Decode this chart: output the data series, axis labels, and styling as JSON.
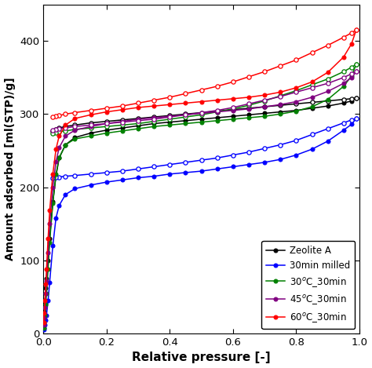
{
  "title": "",
  "xlabel": "Relative pressure [-]",
  "ylabel": "Amount adsorbed [ml(STP)/g]",
  "xlim": [
    0,
    1.0
  ],
  "ylim": [
    0,
    450
  ],
  "yticks": [
    0,
    100,
    200,
    300,
    400
  ],
  "xticks": [
    0.0,
    0.2,
    0.4,
    0.6,
    0.8,
    1.0
  ],
  "series": [
    {
      "label": "Zeolite A",
      "color": "#000000",
      "adsorption_x": [
        0.001,
        0.003,
        0.005,
        0.008,
        0.01,
        0.015,
        0.02,
        0.03,
        0.04,
        0.05,
        0.07,
        0.1,
        0.15,
        0.2,
        0.25,
        0.3,
        0.35,
        0.4,
        0.45,
        0.5,
        0.55,
        0.6,
        0.65,
        0.7,
        0.75,
        0.8,
        0.85,
        0.9,
        0.95,
        0.975,
        0.99
      ],
      "adsorption_y": [
        20,
        30,
        45,
        62,
        75,
        100,
        130,
        180,
        215,
        240,
        258,
        268,
        274,
        278,
        281,
        284,
        287,
        289,
        291,
        293,
        295,
        297,
        299,
        301,
        303,
        305,
        308,
        311,
        315,
        318,
        322
      ],
      "desorption_x": [
        0.99,
        0.975,
        0.95,
        0.9,
        0.85,
        0.8,
        0.75,
        0.7,
        0.65,
        0.6,
        0.55,
        0.5,
        0.45,
        0.4,
        0.35,
        0.3,
        0.25,
        0.2,
        0.15,
        0.1,
        0.07,
        0.05,
        0.04,
        0.03
      ],
      "desorption_y": [
        322,
        321,
        320,
        318,
        316,
        314,
        312,
        310,
        308,
        306,
        304,
        302,
        300,
        298,
        296,
        294,
        292,
        290,
        288,
        285,
        283,
        281,
        279,
        277
      ]
    },
    {
      "label": "30min milled",
      "color": "#0000ff",
      "adsorption_x": [
        0.001,
        0.003,
        0.005,
        0.008,
        0.01,
        0.015,
        0.02,
        0.03,
        0.04,
        0.05,
        0.07,
        0.1,
        0.15,
        0.2,
        0.25,
        0.3,
        0.35,
        0.4,
        0.45,
        0.5,
        0.55,
        0.6,
        0.65,
        0.7,
        0.75,
        0.8,
        0.85,
        0.9,
        0.95,
        0.975,
        0.99
      ],
      "adsorption_y": [
        5,
        8,
        12,
        18,
        25,
        45,
        70,
        120,
        158,
        175,
        190,
        198,
        203,
        207,
        210,
        213,
        215,
        218,
        220,
        222,
        225,
        228,
        231,
        234,
        238,
        244,
        252,
        263,
        278,
        286,
        294
      ],
      "desorption_x": [
        0.99,
        0.975,
        0.95,
        0.9,
        0.85,
        0.8,
        0.75,
        0.7,
        0.65,
        0.6,
        0.55,
        0.5,
        0.45,
        0.4,
        0.35,
        0.3,
        0.25,
        0.2,
        0.15,
        0.1,
        0.07,
        0.05,
        0.04,
        0.03
      ],
      "desorption_y": [
        294,
        292,
        288,
        280,
        272,
        264,
        258,
        253,
        248,
        244,
        240,
        237,
        234,
        231,
        228,
        225,
        222,
        220,
        218,
        216,
        215,
        214,
        213,
        212
      ]
    },
    {
      "label": "30$^o$C_30min",
      "color": "#008000",
      "adsorption_x": [
        0.001,
        0.003,
        0.005,
        0.008,
        0.01,
        0.015,
        0.02,
        0.03,
        0.04,
        0.05,
        0.07,
        0.1,
        0.15,
        0.2,
        0.25,
        0.3,
        0.35,
        0.4,
        0.45,
        0.5,
        0.55,
        0.6,
        0.65,
        0.7,
        0.75,
        0.8,
        0.85,
        0.9,
        0.95,
        0.975,
        0.99
      ],
      "adsorption_y": [
        8,
        15,
        25,
        40,
        55,
        88,
        125,
        178,
        218,
        240,
        258,
        266,
        270,
        274,
        277,
        280,
        283,
        285,
        287,
        289,
        291,
        293,
        295,
        297,
        300,
        304,
        310,
        320,
        338,
        352,
        368
      ],
      "desorption_x": [
        0.99,
        0.975,
        0.95,
        0.9,
        0.85,
        0.8,
        0.75,
        0.7,
        0.65,
        0.6,
        0.55,
        0.5,
        0.45,
        0.4,
        0.35,
        0.3,
        0.25,
        0.2,
        0.15,
        0.1,
        0.07,
        0.05,
        0.04,
        0.03
      ],
      "desorption_y": [
        368,
        364,
        358,
        348,
        340,
        332,
        325,
        318,
        312,
        307,
        303,
        299,
        296,
        293,
        290,
        287,
        285,
        283,
        281,
        279,
        277,
        276,
        275,
        274
      ]
    },
    {
      "label": "45$^o$C_30min",
      "color": "#800080",
      "adsorption_x": [
        0.001,
        0.003,
        0.005,
        0.008,
        0.01,
        0.015,
        0.02,
        0.03,
        0.04,
        0.05,
        0.07,
        0.1,
        0.15,
        0.2,
        0.25,
        0.3,
        0.35,
        0.4,
        0.45,
        0.5,
        0.55,
        0.6,
        0.65,
        0.7,
        0.75,
        0.8,
        0.85,
        0.9,
        0.95,
        0.975,
        0.99
      ],
      "adsorption_y": [
        12,
        22,
        35,
        55,
        72,
        110,
        150,
        200,
        235,
        254,
        270,
        278,
        283,
        287,
        290,
        293,
        295,
        297,
        299,
        301,
        303,
        305,
        307,
        310,
        313,
        317,
        323,
        331,
        342,
        350,
        358
      ],
      "desorption_x": [
        0.99,
        0.975,
        0.95,
        0.9,
        0.85,
        0.8,
        0.75,
        0.7,
        0.65,
        0.6,
        0.55,
        0.5,
        0.45,
        0.4,
        0.35,
        0.3,
        0.25,
        0.2,
        0.15,
        0.1,
        0.07,
        0.05,
        0.04,
        0.03
      ],
      "desorption_y": [
        358,
        355,
        350,
        342,
        336,
        330,
        324,
        319,
        314,
        309,
        305,
        302,
        299,
        296,
        293,
        291,
        289,
        287,
        285,
        283,
        281,
        280,
        279,
        278
      ]
    },
    {
      "label": "60$^o$C_30min",
      "color": "#ff0000",
      "adsorption_x": [
        0.001,
        0.003,
        0.005,
        0.008,
        0.01,
        0.015,
        0.02,
        0.03,
        0.04,
        0.05,
        0.07,
        0.1,
        0.15,
        0.2,
        0.25,
        0.3,
        0.35,
        0.4,
        0.45,
        0.5,
        0.55,
        0.6,
        0.65,
        0.7,
        0.75,
        0.8,
        0.85,
        0.9,
        0.95,
        0.975,
        0.99
      ],
      "adsorption_y": [
        15,
        28,
        45,
        68,
        88,
        130,
        168,
        218,
        252,
        270,
        285,
        294,
        299,
        303,
        306,
        309,
        311,
        313,
        315,
        317,
        319,
        321,
        323,
        326,
        330,
        336,
        344,
        357,
        378,
        396,
        415
      ],
      "desorption_x": [
        0.99,
        0.975,
        0.95,
        0.9,
        0.85,
        0.8,
        0.75,
        0.7,
        0.65,
        0.6,
        0.55,
        0.5,
        0.45,
        0.4,
        0.35,
        0.3,
        0.25,
        0.2,
        0.15,
        0.1,
        0.07,
        0.05,
        0.04,
        0.03
      ],
      "desorption_y": [
        415,
        411,
        405,
        394,
        384,
        374,
        366,
        358,
        351,
        344,
        338,
        333,
        328,
        323,
        319,
        315,
        311,
        308,
        305,
        302,
        300,
        298,
        297,
        296
      ]
    }
  ],
  "legend_loc": "lower right",
  "background_color": "#ffffff",
  "figsize": [
    4.74,
    4.69
  ],
  "dpi": 100
}
